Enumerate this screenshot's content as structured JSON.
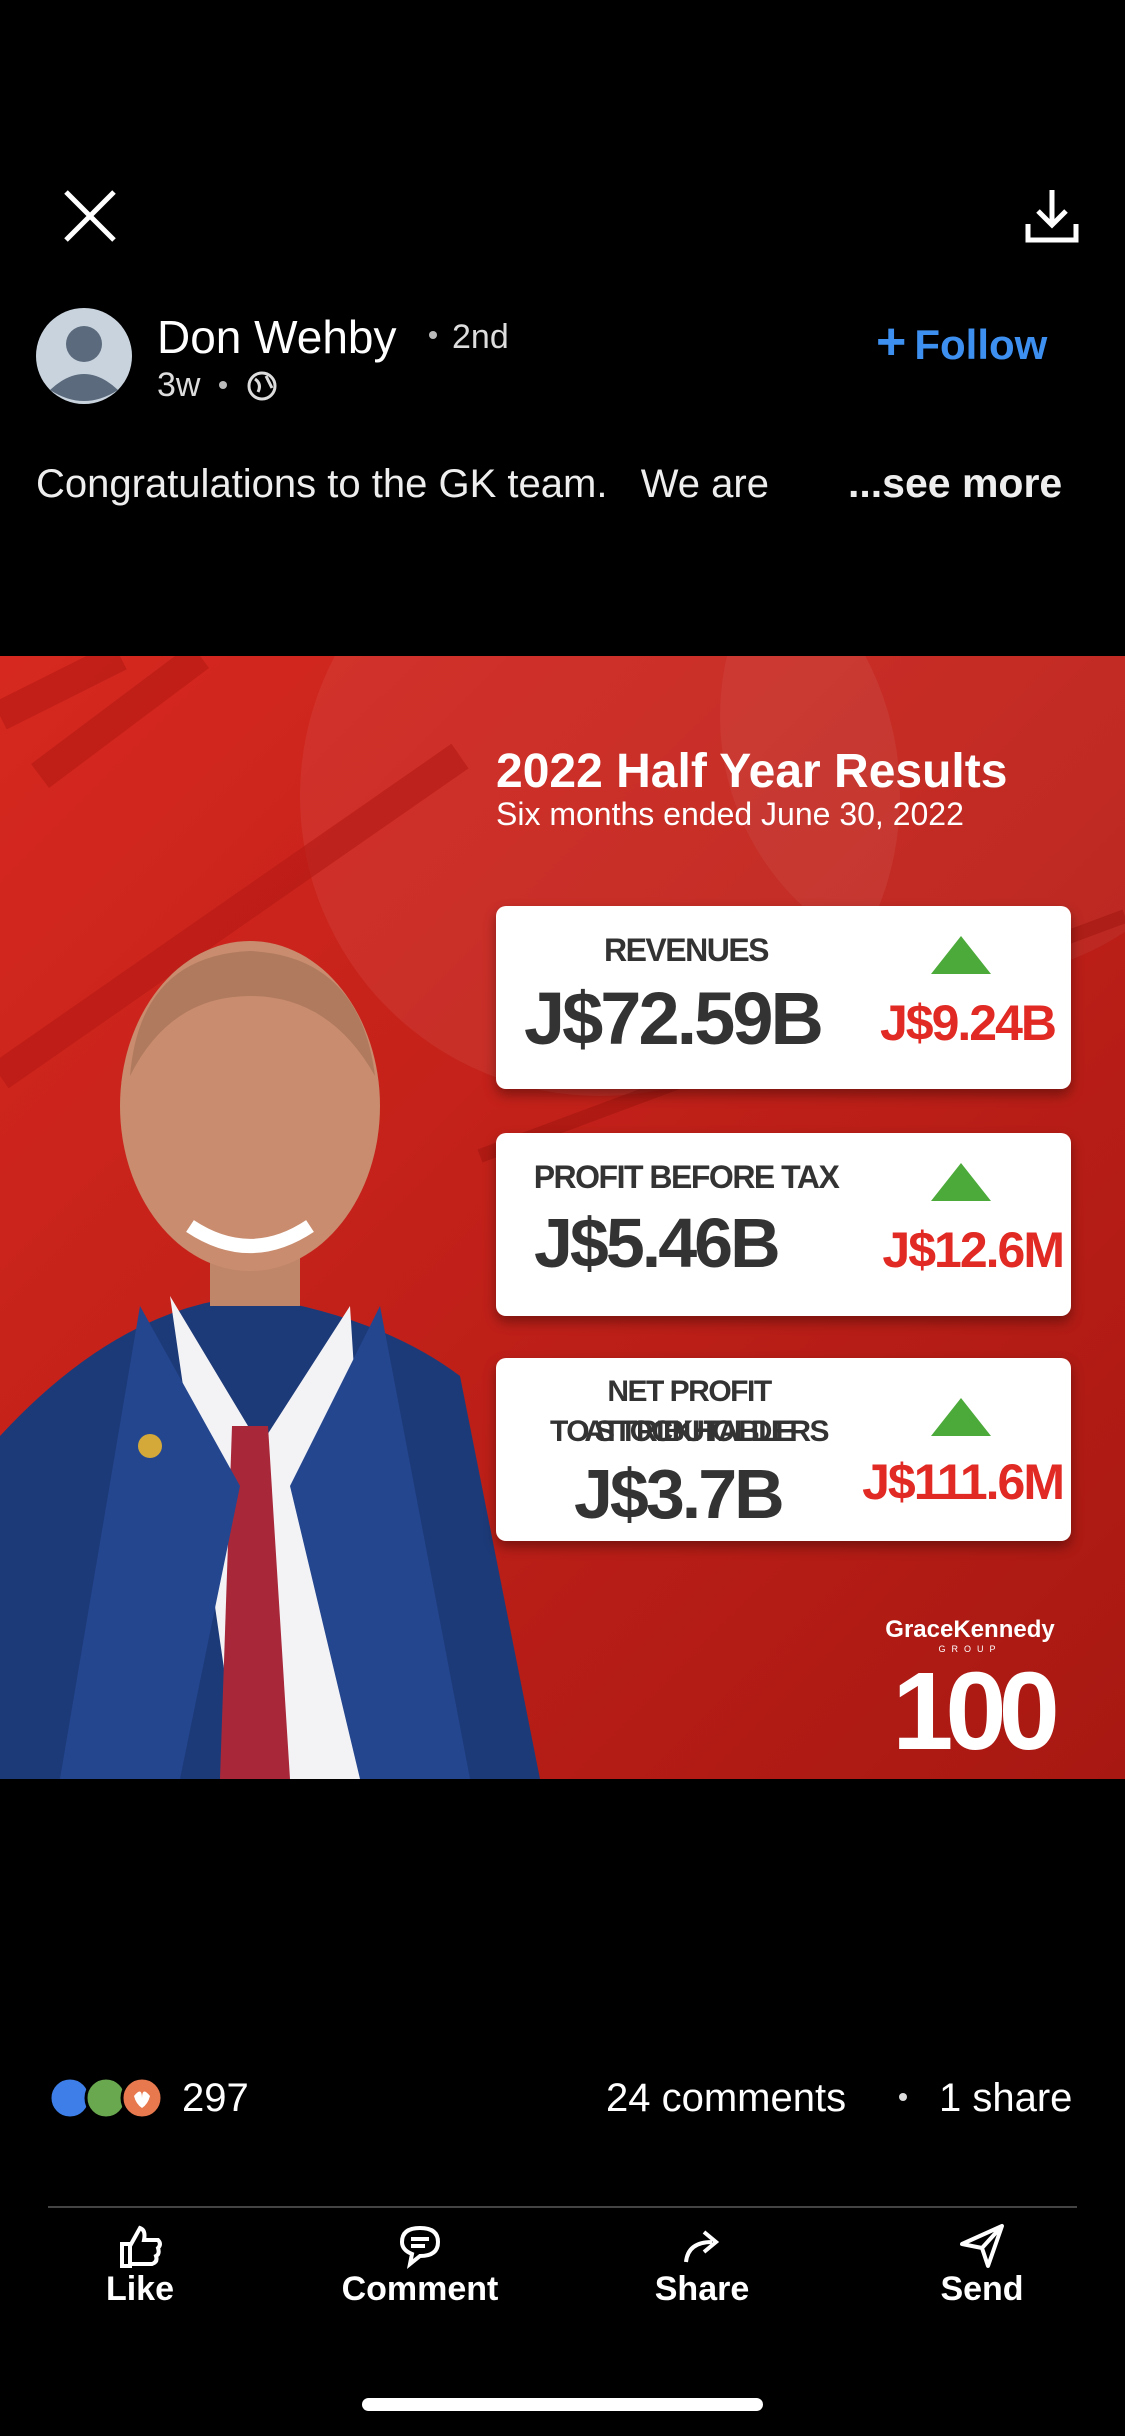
{
  "author": {
    "name": "Don Wehby",
    "degree": "2nd",
    "time": "3w",
    "follow": "Follow"
  },
  "post": {
    "text": "Congratulations to the GK team.   We are",
    "more": "...see more"
  },
  "image": {
    "title": "2022 Half Year Results",
    "subtitle": "Six months ended June 30, 2022",
    "cards": [
      {
        "label": [
          "REVENUES"
        ],
        "value": "J$72.59B",
        "change": "J$9.24B"
      },
      {
        "label": [
          "PROFIT BEFORE TAX"
        ],
        "value": "J$5.46B",
        "change": "J$12.6M"
      },
      {
        "label": [
          "NET PROFIT ATTRIBUTABLE",
          "TO STOCKHOLDERS"
        ],
        "value": "J$3.7B",
        "change": "J$111.6M"
      }
    ],
    "logo": {
      "brand": "GraceKennedy",
      "group": "GROUP",
      "number": "100"
    }
  },
  "social": {
    "reactions": "297",
    "comments": "24 comments",
    "shares": "1 share"
  },
  "actions": [
    "Like",
    "Comment",
    "Share",
    "Send"
  ]
}
